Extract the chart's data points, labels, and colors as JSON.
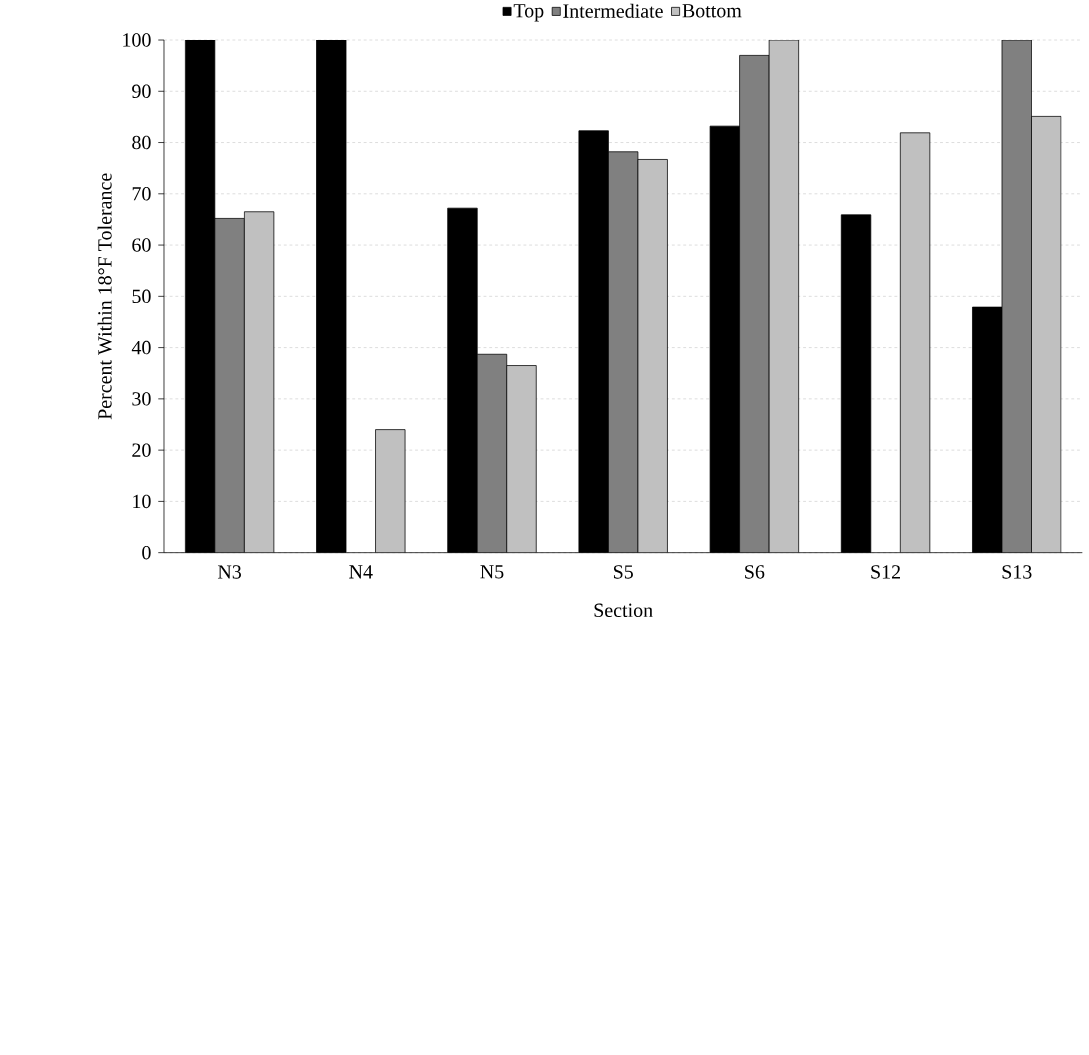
{
  "chart_data": {
    "type": "bar",
    "xlabel": "Section",
    "ylabel": "Percent Within 18°F Tolerance",
    "categories": [
      "N3",
      "N4",
      "N5",
      "S5",
      "S6",
      "S12",
      "S13"
    ],
    "series": [
      {
        "name": "Top",
        "color": "#000000",
        "values": [
          100,
          100,
          67.2,
          82.3,
          83.2,
          65.9,
          47.9
        ]
      },
      {
        "name": "Intermediate",
        "color": "#808080",
        "values": [
          65.2,
          null,
          38.7,
          78.2,
          97.0,
          null,
          100
        ]
      },
      {
        "name": "Bottom",
        "color": "#c0c0c0",
        "values": [
          66.5,
          24.0,
          36.5,
          76.7,
          100,
          81.9,
          85.1
        ]
      }
    ],
    "ylim": [
      0,
      100
    ],
    "yticks": [
      0,
      10,
      20,
      30,
      40,
      50,
      60,
      70,
      80,
      90,
      100
    ],
    "grid": "y",
    "legend": "top"
  }
}
